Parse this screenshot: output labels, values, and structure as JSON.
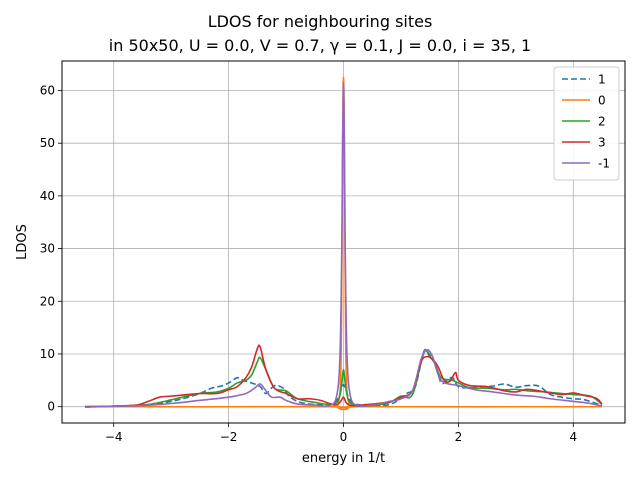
{
  "chart_data": {
    "type": "line",
    "title_line1": "LDOS for neighbouring sites",
    "title_line2": "in 50x50,  U = 0.0, V = 0.7, γ = 0.1, J = 0.0, i = 35, 1",
    "xlabel": "energy in 1/t",
    "ylabel": "LDOS",
    "xlim": [
      -4.9,
      4.9
    ],
    "ylim": [
      -3.1,
      65.6
    ],
    "xticks": [
      -4,
      -2,
      0,
      2,
      4
    ],
    "xtick_labels": [
      "−4",
      "−2",
      "0",
      "2",
      "4"
    ],
    "yticks": [
      0,
      10,
      20,
      30,
      40,
      50,
      60
    ],
    "ytick_labels": [
      "0",
      "10",
      "20",
      "30",
      "40",
      "50",
      "60"
    ],
    "grid": true,
    "legend_position": "upper right",
    "series": [
      {
        "name": "1",
        "color": "#1f77b4",
        "dashed": true,
        "x": [
          -4.5,
          -4.0,
          -3.5,
          -3.2,
          -3.0,
          -2.8,
          -2.5,
          -2.3,
          -2.1,
          -1.95,
          -1.85,
          -1.75,
          -1.6,
          -1.45,
          -1.35,
          -1.2,
          -1.05,
          -0.95,
          -0.8,
          -0.6,
          -0.3,
          -0.15,
          -0.08,
          -0.03,
          0.0,
          0.03,
          0.08,
          0.15,
          0.3,
          0.6,
          0.8,
          0.95,
          1.1,
          1.25,
          1.4,
          1.5,
          1.6,
          1.7,
          1.8,
          1.9,
          2.0,
          2.2,
          2.4,
          2.6,
          2.8,
          3.0,
          3.2,
          3.4,
          3.6,
          3.8,
          4.0,
          4.2,
          4.5
        ],
        "values": [
          -0.1,
          0.1,
          0.3,
          0.6,
          1.0,
          1.5,
          2.5,
          3.5,
          4.0,
          4.8,
          5.5,
          5.0,
          4.5,
          3.8,
          2.5,
          4.0,
          3.5,
          2.0,
          1.0,
          0.5,
          0.4,
          0.8,
          2.0,
          3.5,
          4.2,
          3.5,
          2.0,
          0.8,
          0.3,
          0.2,
          0.4,
          1.2,
          2.5,
          3.8,
          10.5,
          9.8,
          8.0,
          4.5,
          5.0,
          5.5,
          3.8,
          3.6,
          3.8,
          3.9,
          4.3,
          3.7,
          4.0,
          3.9,
          2.3,
          1.8,
          1.5,
          1.3,
          0.2
        ]
      },
      {
        "name": "0",
        "color": "#ff7f0e",
        "dashed": false,
        "x": [
          -4.5,
          -0.3,
          -0.1,
          -0.04,
          -0.02,
          0.0,
          0.02,
          0.04,
          0.1,
          0.3,
          4.5
        ],
        "values": [
          0.0,
          0.0,
          0.3,
          10.0,
          45.0,
          62.5,
          45.0,
          10.0,
          0.3,
          0.0,
          0.0
        ]
      },
      {
        "name": "2",
        "color": "#2ca02c",
        "dashed": false,
        "x": [
          -4.5,
          -4.0,
          -3.5,
          -3.2,
          -3.0,
          -2.8,
          -2.5,
          -2.2,
          -2.0,
          -1.85,
          -1.7,
          -1.6,
          -1.5,
          -1.45,
          -1.35,
          -1.2,
          -1.0,
          -0.8,
          -0.5,
          -0.2,
          -0.08,
          -0.03,
          0.0,
          0.03,
          0.08,
          0.2,
          0.5,
          0.8,
          1.0,
          1.2,
          1.4,
          1.5,
          1.6,
          1.7,
          1.9,
          2.0,
          2.2,
          2.5,
          2.8,
          3.0,
          3.2,
          3.5,
          3.8,
          4.0,
          4.3,
          4.5
        ],
        "values": [
          0.0,
          0.1,
          0.3,
          0.8,
          1.3,
          1.8,
          2.5,
          2.8,
          3.5,
          4.5,
          5.0,
          6.0,
          8.5,
          9.3,
          7.0,
          3.5,
          3.0,
          1.5,
          0.8,
          0.4,
          1.5,
          4.5,
          7.0,
          4.5,
          1.5,
          0.2,
          0.2,
          0.8,
          2.0,
          2.3,
          10.2,
          9.5,
          8.0,
          5.5,
          5.0,
          4.5,
          3.6,
          3.5,
          3.2,
          3.3,
          3.0,
          2.8,
          2.5,
          2.3,
          2.0,
          0.4
        ]
      },
      {
        "name": "3",
        "color": "#d62728",
        "dashed": false,
        "x": [
          -4.5,
          -4.0,
          -3.6,
          -3.4,
          -3.2,
          -3.0,
          -2.8,
          -2.5,
          -2.2,
          -2.0,
          -1.85,
          -1.7,
          -1.6,
          -1.5,
          -1.45,
          -1.35,
          -1.2,
          -1.0,
          -0.8,
          -0.6,
          -0.4,
          -0.15,
          -0.05,
          0.0,
          0.05,
          0.15,
          0.4,
          0.8,
          1.0,
          1.2,
          1.35,
          1.45,
          1.55,
          1.65,
          1.75,
          1.85,
          1.95,
          2.0,
          2.2,
          2.5,
          2.8,
          3.0,
          3.2,
          3.5,
          3.8,
          4.0,
          4.2,
          4.4,
          4.5
        ],
        "values": [
          0.0,
          0.1,
          0.3,
          1.0,
          1.8,
          2.0,
          2.2,
          2.5,
          2.5,
          3.2,
          3.8,
          5.5,
          7.5,
          11.0,
          11.3,
          7.0,
          3.5,
          2.5,
          1.5,
          1.5,
          1.2,
          0.3,
          1.0,
          1.8,
          0.7,
          0.2,
          0.4,
          0.9,
          1.8,
          3.0,
          8.5,
          9.5,
          9.0,
          7.5,
          5.0,
          4.8,
          6.5,
          5.0,
          4.0,
          3.8,
          3.0,
          2.8,
          3.3,
          2.8,
          2.3,
          2.6,
          2.1,
          1.6,
          0.5
        ]
      },
      {
        "name": "-1",
        "color": "#9467bd",
        "dashed": false,
        "x": [
          -4.5,
          -4.0,
          -3.5,
          -3.0,
          -2.5,
          -2.0,
          -1.7,
          -1.55,
          -1.45,
          -1.35,
          -1.25,
          -1.1,
          -1.0,
          -0.8,
          -0.5,
          -0.25,
          -0.12,
          -0.06,
          -0.03,
          0.0,
          0.03,
          0.06,
          0.12,
          0.25,
          0.5,
          0.8,
          1.0,
          1.2,
          1.35,
          1.45,
          1.55,
          1.7,
          2.0,
          2.3,
          2.6,
          3.0,
          3.3,
          3.6,
          4.0,
          4.3,
          4.5
        ],
        "values": [
          -0.1,
          0.1,
          0.2,
          0.6,
          1.2,
          1.8,
          2.5,
          3.5,
          4.3,
          3.0,
          1.8,
          1.8,
          1.2,
          0.5,
          0.3,
          0.2,
          2.0,
          10.0,
          30.0,
          61.5,
          30.0,
          10.0,
          2.0,
          0.2,
          0.3,
          1.0,
          1.5,
          3.0,
          9.0,
          10.8,
          9.5,
          5.0,
          4.0,
          3.2,
          2.8,
          2.2,
          2.0,
          1.5,
          1.0,
          0.6,
          0.1
        ]
      }
    ]
  }
}
